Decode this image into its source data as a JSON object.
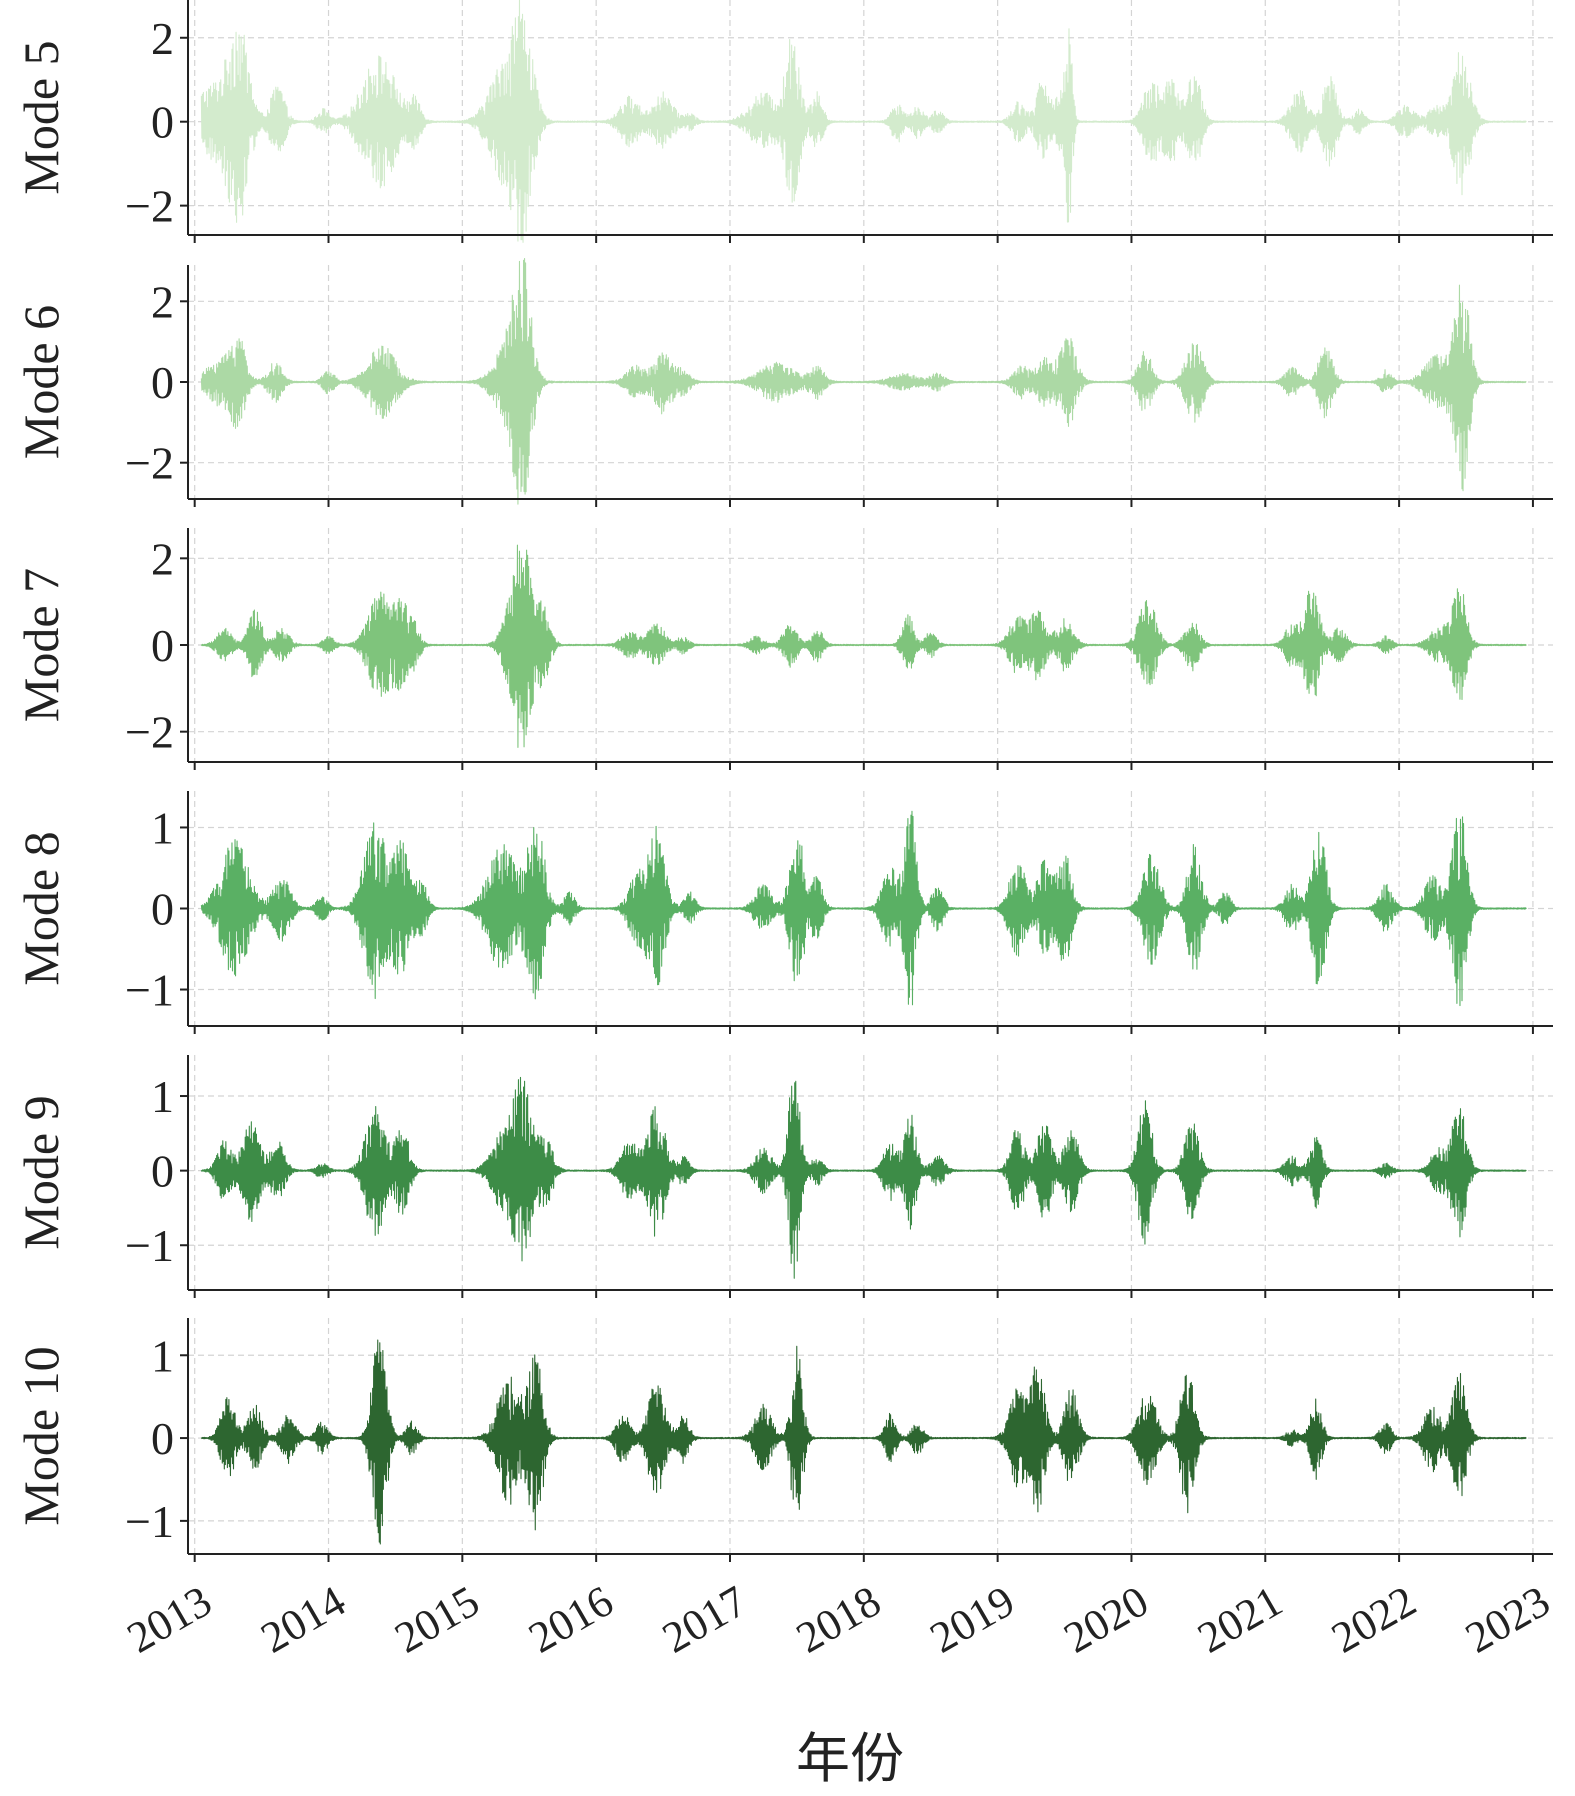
{
  "chart_data": {
    "type": "line",
    "xlabel": "年份",
    "x_ticks": [
      "2013",
      "2014",
      "2015",
      "2016",
      "2017",
      "2018",
      "2019",
      "2020",
      "2021",
      "2022",
      "2023"
    ],
    "x_range": [
      2012.95,
      2023.15
    ],
    "panels": [
      {
        "ylabel": "Mode 5",
        "color": "#d3ebcd",
        "ylim": [
          -2.7,
          2.9
        ],
        "y_ticks": [
          2,
          0,
          -2
        ],
        "y_tick_labels": [
          "2",
          "0",
          "−2"
        ],
        "envelope": [
          {
            "t": 2013.15,
            "w": 0.14,
            "a": 0.9
          },
          {
            "t": 2013.33,
            "w": 0.07,
            "a": 2.1
          },
          {
            "t": 2013.62,
            "w": 0.05,
            "a": 0.9
          },
          {
            "t": 2013.96,
            "w": 0.04,
            "a": 0.3
          },
          {
            "t": 2014.38,
            "w": 0.12,
            "a": 1.6
          },
          {
            "t": 2014.65,
            "w": 0.04,
            "a": 0.5
          },
          {
            "t": 2015.3,
            "w": 0.1,
            "a": 1.3
          },
          {
            "t": 2015.45,
            "w": 0.07,
            "a": 2.6
          },
          {
            "t": 2016.25,
            "w": 0.07,
            "a": 0.6
          },
          {
            "t": 2016.5,
            "w": 0.07,
            "a": 0.7
          },
          {
            "t": 2016.7,
            "w": 0.04,
            "a": 0.2
          },
          {
            "t": 2017.25,
            "w": 0.1,
            "a": 0.7
          },
          {
            "t": 2017.47,
            "w": 0.05,
            "a": 2.2
          },
          {
            "t": 2017.65,
            "w": 0.04,
            "a": 0.7
          },
          {
            "t": 2018.25,
            "w": 0.04,
            "a": 0.5
          },
          {
            "t": 2018.4,
            "w": 0.04,
            "a": 0.4
          },
          {
            "t": 2018.55,
            "w": 0.04,
            "a": 0.3
          },
          {
            "t": 2019.16,
            "w": 0.05,
            "a": 0.5
          },
          {
            "t": 2019.33,
            "w": 0.04,
            "a": 1.0
          },
          {
            "t": 2019.45,
            "w": 0.04,
            "a": 0.7
          },
          {
            "t": 2019.53,
            "w": 0.025,
            "a": 2.6
          },
          {
            "t": 2020.15,
            "w": 0.06,
            "a": 1.0
          },
          {
            "t": 2020.3,
            "w": 0.05,
            "a": 1.0
          },
          {
            "t": 2020.47,
            "w": 0.05,
            "a": 1.2
          },
          {
            "t": 2021.25,
            "w": 0.06,
            "a": 0.8
          },
          {
            "t": 2021.48,
            "w": 0.05,
            "a": 1.1
          },
          {
            "t": 2021.7,
            "w": 0.04,
            "a": 0.3
          },
          {
            "t": 2022.05,
            "w": 0.06,
            "a": 0.4
          },
          {
            "t": 2022.28,
            "w": 0.06,
            "a": 0.4
          },
          {
            "t": 2022.47,
            "w": 0.06,
            "a": 1.8
          }
        ]
      },
      {
        "ylabel": "Mode 6",
        "color": "#acd9a5",
        "ylim": [
          -2.9,
          2.9
        ],
        "y_ticks": [
          2,
          0,
          -2
        ],
        "y_tick_labels": [
          "2",
          "0",
          "−2"
        ],
        "envelope": [
          {
            "t": 2013.2,
            "w": 0.1,
            "a": 0.6
          },
          {
            "t": 2013.33,
            "w": 0.05,
            "a": 1.0
          },
          {
            "t": 2013.6,
            "w": 0.05,
            "a": 0.5
          },
          {
            "t": 2014.0,
            "w": 0.04,
            "a": 0.3
          },
          {
            "t": 2014.4,
            "w": 0.1,
            "a": 0.9
          },
          {
            "t": 2015.35,
            "w": 0.1,
            "a": 1.0
          },
          {
            "t": 2015.45,
            "w": 0.06,
            "a": 2.7
          },
          {
            "t": 2016.3,
            "w": 0.07,
            "a": 0.4
          },
          {
            "t": 2016.5,
            "w": 0.06,
            "a": 0.8
          },
          {
            "t": 2016.65,
            "w": 0.05,
            "a": 0.3
          },
          {
            "t": 2017.35,
            "w": 0.12,
            "a": 0.5
          },
          {
            "t": 2017.65,
            "w": 0.05,
            "a": 0.4
          },
          {
            "t": 2018.3,
            "w": 0.1,
            "a": 0.2
          },
          {
            "t": 2018.55,
            "w": 0.05,
            "a": 0.2
          },
          {
            "t": 2019.18,
            "w": 0.06,
            "a": 0.4
          },
          {
            "t": 2019.35,
            "w": 0.05,
            "a": 0.6
          },
          {
            "t": 2019.52,
            "w": 0.06,
            "a": 1.2
          },
          {
            "t": 2020.1,
            "w": 0.05,
            "a": 0.8
          },
          {
            "t": 2020.47,
            "w": 0.06,
            "a": 1.0
          },
          {
            "t": 2021.2,
            "w": 0.05,
            "a": 0.4
          },
          {
            "t": 2021.45,
            "w": 0.05,
            "a": 0.9
          },
          {
            "t": 2021.9,
            "w": 0.04,
            "a": 0.3
          },
          {
            "t": 2022.3,
            "w": 0.1,
            "a": 0.7
          },
          {
            "t": 2022.47,
            "w": 0.05,
            "a": 2.6
          }
        ]
      },
      {
        "ylabel": "Mode 7",
        "color": "#7fc47c",
        "ylim": [
          -2.7,
          2.7
        ],
        "y_ticks": [
          2,
          0,
          -2
        ],
        "y_tick_labels": [
          "2",
          "0",
          "−2"
        ],
        "envelope": [
          {
            "t": 2013.22,
            "w": 0.05,
            "a": 0.4
          },
          {
            "t": 2013.45,
            "w": 0.05,
            "a": 0.8
          },
          {
            "t": 2013.65,
            "w": 0.05,
            "a": 0.4
          },
          {
            "t": 2014.0,
            "w": 0.04,
            "a": 0.2
          },
          {
            "t": 2014.38,
            "w": 0.08,
            "a": 1.2
          },
          {
            "t": 2014.55,
            "w": 0.06,
            "a": 0.9
          },
          {
            "t": 2014.65,
            "w": 0.04,
            "a": 0.3
          },
          {
            "t": 2015.35,
            "w": 0.06,
            "a": 0.6
          },
          {
            "t": 2015.45,
            "w": 0.06,
            "a": 2.4
          },
          {
            "t": 2015.6,
            "w": 0.05,
            "a": 0.9
          },
          {
            "t": 2016.25,
            "w": 0.06,
            "a": 0.3
          },
          {
            "t": 2016.45,
            "w": 0.06,
            "a": 0.5
          },
          {
            "t": 2016.65,
            "w": 0.04,
            "a": 0.2
          },
          {
            "t": 2017.2,
            "w": 0.05,
            "a": 0.2
          },
          {
            "t": 2017.45,
            "w": 0.05,
            "a": 0.5
          },
          {
            "t": 2017.65,
            "w": 0.04,
            "a": 0.4
          },
          {
            "t": 2018.33,
            "w": 0.04,
            "a": 0.7
          },
          {
            "t": 2018.5,
            "w": 0.04,
            "a": 0.3
          },
          {
            "t": 2019.15,
            "w": 0.06,
            "a": 0.7
          },
          {
            "t": 2019.3,
            "w": 0.05,
            "a": 0.8
          },
          {
            "t": 2019.5,
            "w": 0.06,
            "a": 0.6
          },
          {
            "t": 2020.12,
            "w": 0.06,
            "a": 1.1
          },
          {
            "t": 2020.45,
            "w": 0.05,
            "a": 0.6
          },
          {
            "t": 2021.2,
            "w": 0.05,
            "a": 0.5
          },
          {
            "t": 2021.35,
            "w": 0.05,
            "a": 1.4
          },
          {
            "t": 2021.55,
            "w": 0.05,
            "a": 0.4
          },
          {
            "t": 2021.9,
            "w": 0.04,
            "a": 0.2
          },
          {
            "t": 2022.3,
            "w": 0.07,
            "a": 0.4
          },
          {
            "t": 2022.45,
            "w": 0.05,
            "a": 1.4
          }
        ]
      },
      {
        "ylabel": "Mode 8",
        "color": "#5ab064",
        "ylim": [
          -1.45,
          1.45
        ],
        "y_ticks": [
          1,
          0,
          -1
        ],
        "y_tick_labels": [
          "1",
          "0",
          "−1"
        ],
        "envelope": [
          {
            "t": 2013.3,
            "w": 0.1,
            "a": 0.85
          },
          {
            "t": 2013.65,
            "w": 0.06,
            "a": 0.4
          },
          {
            "t": 2013.95,
            "w": 0.04,
            "a": 0.15
          },
          {
            "t": 2014.35,
            "w": 0.08,
            "a": 1.1
          },
          {
            "t": 2014.55,
            "w": 0.06,
            "a": 0.8
          },
          {
            "t": 2014.7,
            "w": 0.04,
            "a": 0.3
          },
          {
            "t": 2015.3,
            "w": 0.1,
            "a": 0.8
          },
          {
            "t": 2015.55,
            "w": 0.06,
            "a": 1.1
          },
          {
            "t": 2015.8,
            "w": 0.04,
            "a": 0.2
          },
          {
            "t": 2016.3,
            "w": 0.06,
            "a": 0.4
          },
          {
            "t": 2016.45,
            "w": 0.06,
            "a": 1.0
          },
          {
            "t": 2016.7,
            "w": 0.04,
            "a": 0.2
          },
          {
            "t": 2017.25,
            "w": 0.06,
            "a": 0.3
          },
          {
            "t": 2017.5,
            "w": 0.05,
            "a": 1.0
          },
          {
            "t": 2017.65,
            "w": 0.04,
            "a": 0.4
          },
          {
            "t": 2018.2,
            "w": 0.06,
            "a": 0.5
          },
          {
            "t": 2018.35,
            "w": 0.04,
            "a": 1.25
          },
          {
            "t": 2018.55,
            "w": 0.04,
            "a": 0.3
          },
          {
            "t": 2019.15,
            "w": 0.06,
            "a": 0.6
          },
          {
            "t": 2019.35,
            "w": 0.05,
            "a": 0.6
          },
          {
            "t": 2019.5,
            "w": 0.05,
            "a": 0.7
          },
          {
            "t": 2020.15,
            "w": 0.06,
            "a": 0.7
          },
          {
            "t": 2020.47,
            "w": 0.05,
            "a": 0.8
          },
          {
            "t": 2020.7,
            "w": 0.04,
            "a": 0.2
          },
          {
            "t": 2021.2,
            "w": 0.05,
            "a": 0.3
          },
          {
            "t": 2021.4,
            "w": 0.05,
            "a": 1.0
          },
          {
            "t": 2021.9,
            "w": 0.05,
            "a": 0.3
          },
          {
            "t": 2022.25,
            "w": 0.06,
            "a": 0.4
          },
          {
            "t": 2022.45,
            "w": 0.05,
            "a": 1.3
          }
        ]
      },
      {
        "ylabel": "Mode 9",
        "color": "#3d8c47",
        "ylim": [
          -1.6,
          1.55
        ],
        "y_ticks": [
          1,
          0,
          -1
        ],
        "y_tick_labels": [
          "1",
          "0",
          "−1"
        ],
        "envelope": [
          {
            "t": 2013.22,
            "w": 0.05,
            "a": 0.4
          },
          {
            "t": 2013.42,
            "w": 0.06,
            "a": 0.7
          },
          {
            "t": 2013.62,
            "w": 0.05,
            "a": 0.4
          },
          {
            "t": 2013.95,
            "w": 0.04,
            "a": 0.1
          },
          {
            "t": 2014.35,
            "w": 0.07,
            "a": 0.9
          },
          {
            "t": 2014.55,
            "w": 0.05,
            "a": 0.6
          },
          {
            "t": 2015.3,
            "w": 0.08,
            "a": 0.5
          },
          {
            "t": 2015.45,
            "w": 0.06,
            "a": 1.3
          },
          {
            "t": 2015.62,
            "w": 0.05,
            "a": 0.5
          },
          {
            "t": 2016.25,
            "w": 0.06,
            "a": 0.4
          },
          {
            "t": 2016.45,
            "w": 0.06,
            "a": 0.9
          },
          {
            "t": 2016.65,
            "w": 0.04,
            "a": 0.2
          },
          {
            "t": 2017.25,
            "w": 0.06,
            "a": 0.3
          },
          {
            "t": 2017.48,
            "w": 0.04,
            "a": 1.45
          },
          {
            "t": 2017.65,
            "w": 0.04,
            "a": 0.2
          },
          {
            "t": 2018.2,
            "w": 0.05,
            "a": 0.4
          },
          {
            "t": 2018.35,
            "w": 0.04,
            "a": 0.8
          },
          {
            "t": 2018.55,
            "w": 0.05,
            "a": 0.2
          },
          {
            "t": 2019.15,
            "w": 0.05,
            "a": 0.6
          },
          {
            "t": 2019.35,
            "w": 0.05,
            "a": 0.7
          },
          {
            "t": 2019.55,
            "w": 0.05,
            "a": 0.6
          },
          {
            "t": 2020.1,
            "w": 0.05,
            "a": 1.0
          },
          {
            "t": 2020.45,
            "w": 0.05,
            "a": 0.7
          },
          {
            "t": 2021.2,
            "w": 0.05,
            "a": 0.2
          },
          {
            "t": 2021.38,
            "w": 0.04,
            "a": 0.5
          },
          {
            "t": 2021.9,
            "w": 0.04,
            "a": 0.1
          },
          {
            "t": 2022.3,
            "w": 0.06,
            "a": 0.3
          },
          {
            "t": 2022.45,
            "w": 0.05,
            "a": 0.9
          }
        ]
      },
      {
        "ylabel": "Mode 10",
        "color": "#2d6630",
        "ylim": [
          -1.4,
          1.45
        ],
        "y_ticks": [
          1,
          0,
          -1
        ],
        "y_tick_labels": [
          "1",
          "0",
          "−1"
        ],
        "envelope": [
          {
            "t": 2013.25,
            "w": 0.05,
            "a": 0.5
          },
          {
            "t": 2013.45,
            "w": 0.05,
            "a": 0.4
          },
          {
            "t": 2013.7,
            "w": 0.05,
            "a": 0.3
          },
          {
            "t": 2013.95,
            "w": 0.04,
            "a": 0.2
          },
          {
            "t": 2014.38,
            "w": 0.05,
            "a": 1.3
          },
          {
            "t": 2014.62,
            "w": 0.04,
            "a": 0.2
          },
          {
            "t": 2015.35,
            "w": 0.08,
            "a": 0.8
          },
          {
            "t": 2015.55,
            "w": 0.05,
            "a": 1.1
          },
          {
            "t": 2016.2,
            "w": 0.05,
            "a": 0.3
          },
          {
            "t": 2016.45,
            "w": 0.06,
            "a": 0.7
          },
          {
            "t": 2016.65,
            "w": 0.04,
            "a": 0.3
          },
          {
            "t": 2017.25,
            "w": 0.06,
            "a": 0.4
          },
          {
            "t": 2017.5,
            "w": 0.04,
            "a": 1.1
          },
          {
            "t": 2018.2,
            "w": 0.04,
            "a": 0.3
          },
          {
            "t": 2018.4,
            "w": 0.04,
            "a": 0.2
          },
          {
            "t": 2019.15,
            "w": 0.06,
            "a": 0.6
          },
          {
            "t": 2019.3,
            "w": 0.05,
            "a": 0.9
          },
          {
            "t": 2019.55,
            "w": 0.05,
            "a": 0.6
          },
          {
            "t": 2020.12,
            "w": 0.06,
            "a": 0.6
          },
          {
            "t": 2020.42,
            "w": 0.05,
            "a": 0.9
          },
          {
            "t": 2021.2,
            "w": 0.04,
            "a": 0.1
          },
          {
            "t": 2021.38,
            "w": 0.04,
            "a": 0.5
          },
          {
            "t": 2021.9,
            "w": 0.04,
            "a": 0.2
          },
          {
            "t": 2022.25,
            "w": 0.06,
            "a": 0.4
          },
          {
            "t": 2022.45,
            "w": 0.05,
            "a": 0.8
          }
        ]
      }
    ]
  }
}
